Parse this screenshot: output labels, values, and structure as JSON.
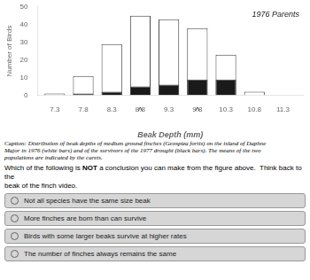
{
  "chart_data": {
    "type": "bar",
    "x": [
      7.3,
      7.8,
      8.3,
      8.8,
      9.3,
      9.8,
      10.3,
      10.8,
      11.3
    ],
    "series": [
      {
        "color": "#ffffff",
        "values": [
          1,
          11,
          29,
          45,
          43,
          38,
          23,
          2,
          0
        ]
      },
      {
        "color": "#1a1a1a",
        "values": [
          0,
          1,
          2,
          5,
          6,
          9,
          9,
          0,
          0
        ]
      }
    ],
    "xlabel": "Beak Depth (mm)",
    "ylabel": "Number of Birds",
    "xlim": [
      7.0,
      11.65
    ],
    "xticks": [
      7.3,
      7.8,
      8.3,
      8.8,
      9.3,
      9.8,
      10.3,
      10.8,
      11.3
    ],
    "ylim": [
      0,
      50
    ],
    "yticks": [
      0,
      10,
      20,
      30,
      40,
      50
    ],
    "grid": false,
    "annotations": [
      {
        "text": "^",
        "x": 8.8
      },
      {
        "text": "^",
        "x": 9.8
      },
      {
        "text": "1976 Parents"
      }
    ]
  },
  "caption": [
    "Caption: Distribution of beak depths of medium ground finches (Geospiza fortis) on the island of Daphne",
    "Major in 1976 (white bars) and of the survivors of the 1977 drought (black bars). The means of the two",
    "populations are indicated by the carets."
  ],
  "question": [
    [
      {
        "text": "Which of the following is "
      },
      {
        "text": "NOT",
        "bold": true
      },
      {
        "text": " a conclusion you can make from the figure above.  Think back to the"
      }
    ],
    [
      {
        "text": "beak of the finch video."
      }
    ]
  ],
  "options": [
    "Not all species have the same size beak",
    "More finches are born than can survive",
    "Birds with some larger beaks survive at higher rates",
    "The number of finches always remains the same"
  ]
}
